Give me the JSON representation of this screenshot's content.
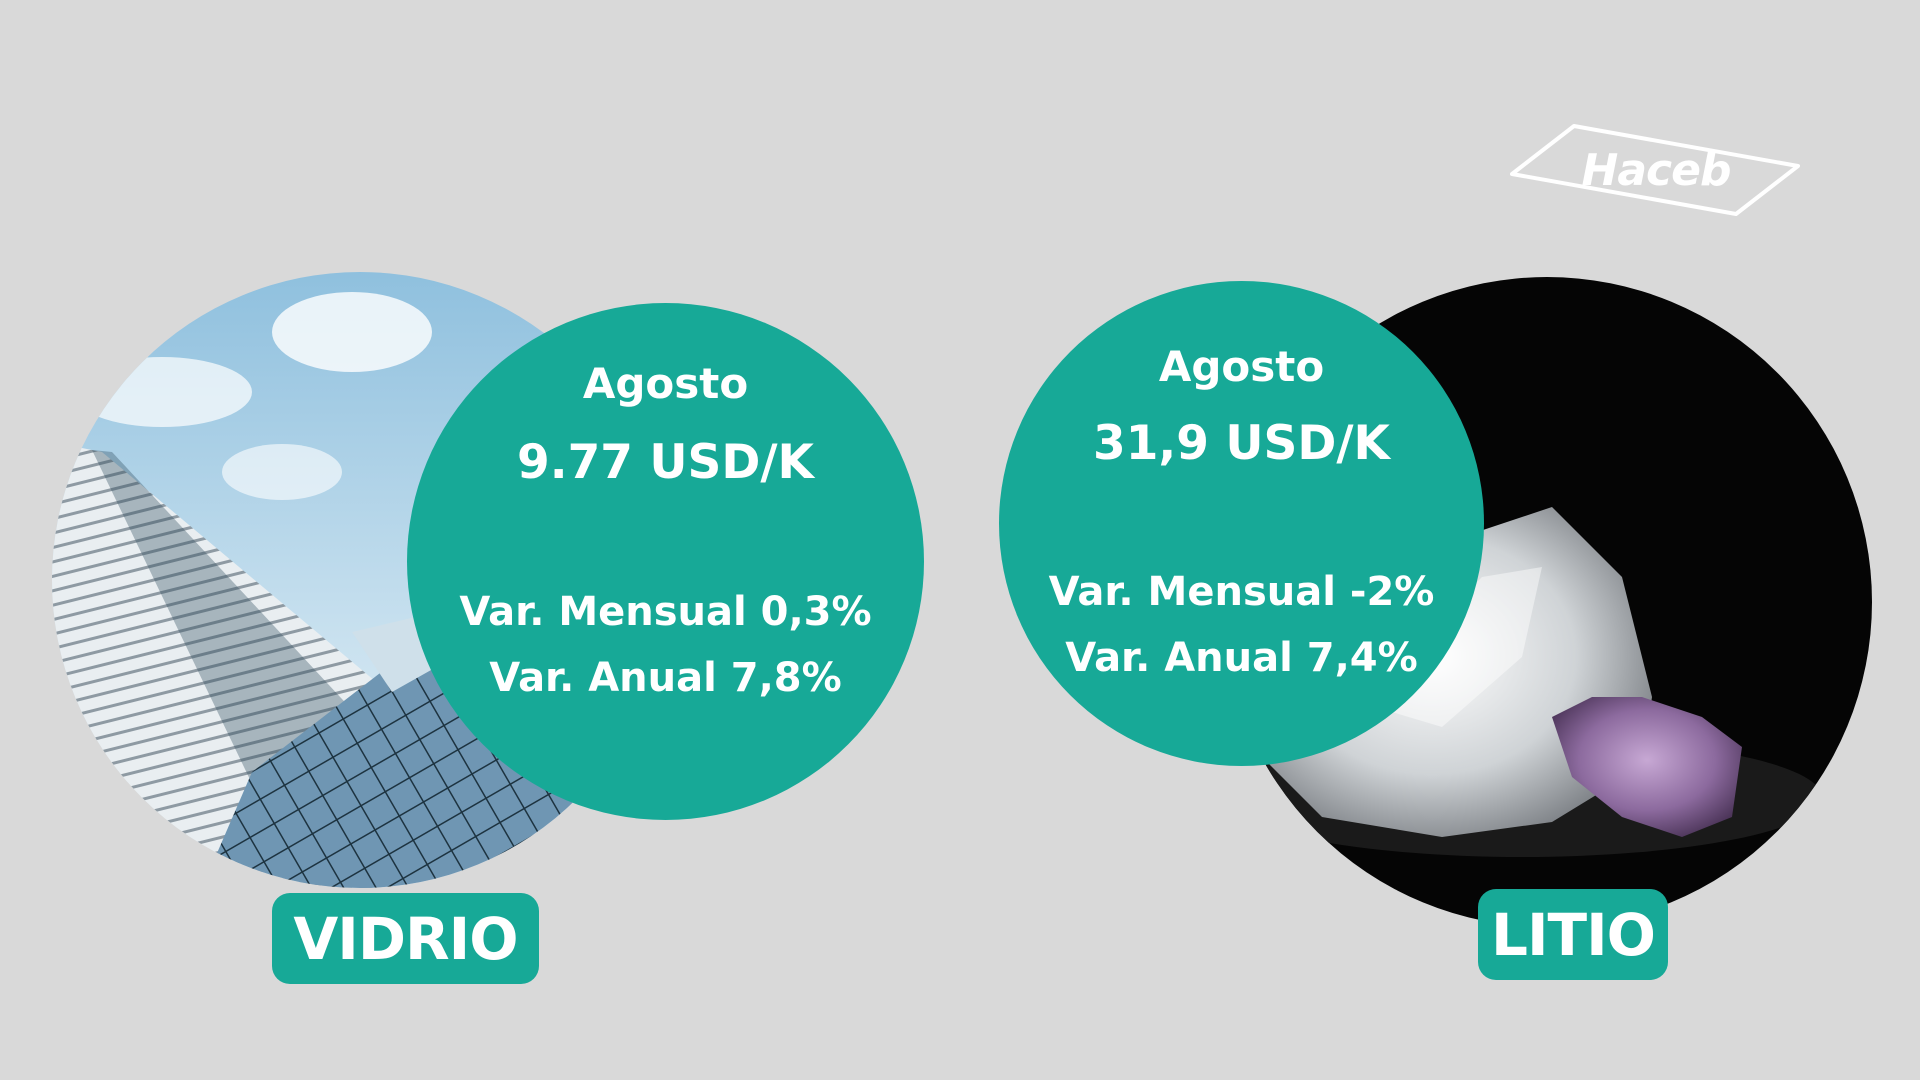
{
  "brand": {
    "logo_text": "Haceb",
    "colors": {
      "accent": "#17a997",
      "background": "#d9d9d9",
      "text": "#ffffff"
    }
  },
  "materials": [
    {
      "label": "VIDRIO",
      "month": "Agosto",
      "price": "9.77 USD/K",
      "monthly_variation": "Var. Mensual 0,3%",
      "annual_variation": "Var. Anual 7,8%",
      "photo": "glass-building-photo"
    },
    {
      "label": "LITIO",
      "month": "Agosto",
      "price": "31,9 USD/K",
      "monthly_variation": "Var. Mensual -2%",
      "annual_variation": "Var. Anual 7,4%",
      "photo": "lithium-crystals-photo"
    }
  ]
}
